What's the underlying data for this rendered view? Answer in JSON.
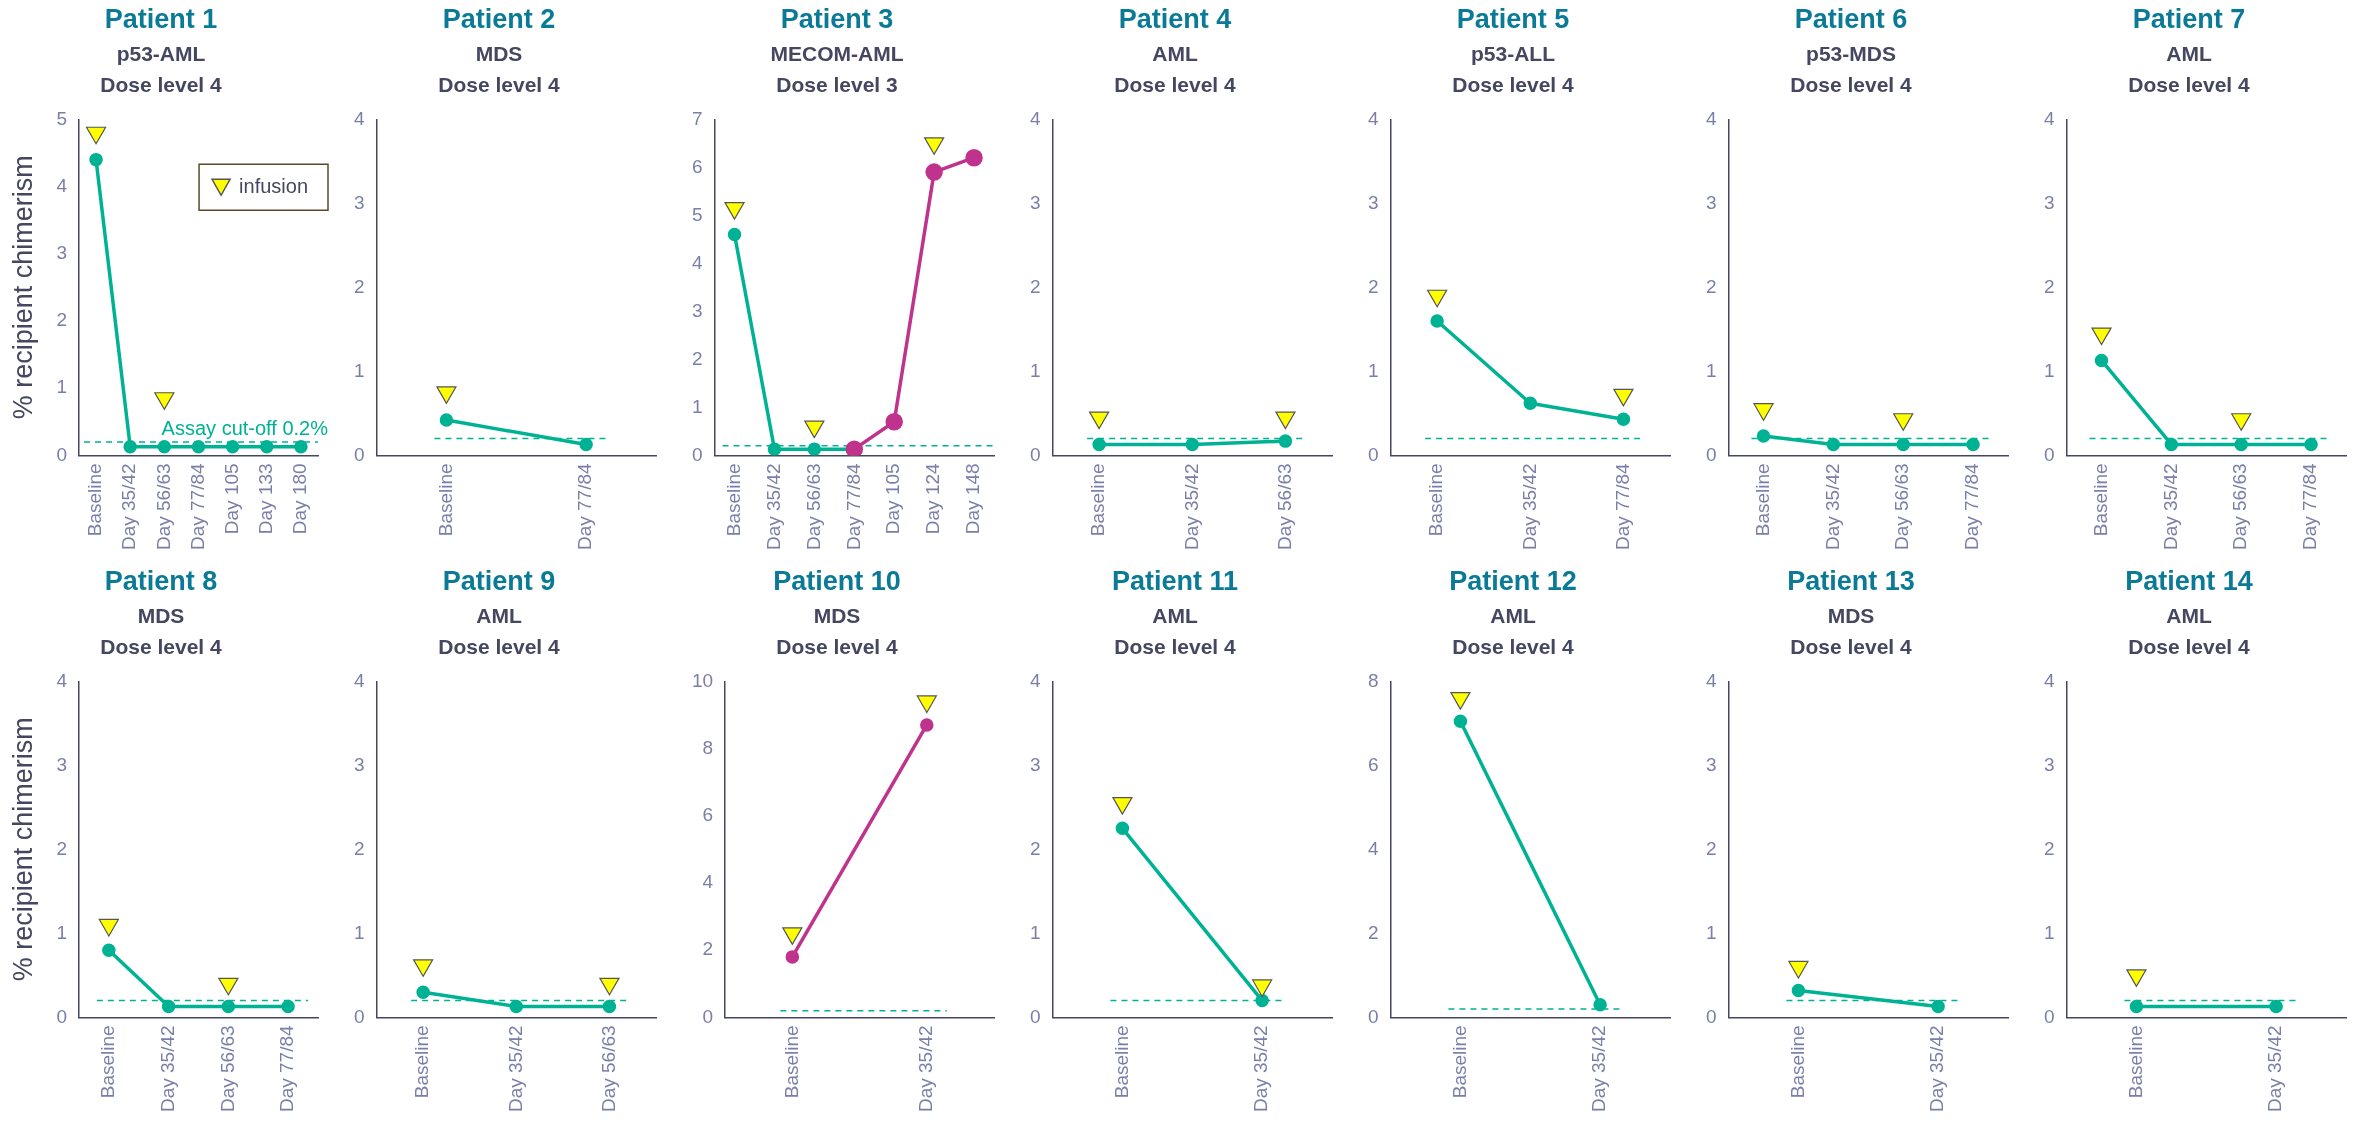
{
  "chart_data": [
    {
      "type": "line",
      "title": "Patient 1",
      "subtitle": "p53-AML\nDose level 4",
      "ylabel": "% recipient chimerism",
      "categories": [
        "Baseline",
        "Day 35/42",
        "Day 56/63",
        "Day 77/84",
        "Day 105",
        "Day 133",
        "Day 180"
      ],
      "ylim": [
        0,
        5
      ],
      "yticks": [
        0,
        1,
        2,
        3,
        4,
        5
      ],
      "marker": "circle",
      "line_style": "solid",
      "legend": "top right",
      "series": [
        {
          "color": "#00b294",
          "values": [
            4.4,
            0.13,
            0.13,
            0.13,
            0.13,
            0.13,
            0.13
          ]
        },
        {
          "type": "scatter",
          "name": "infusion",
          "marker": "triangle",
          "color": "#ffff00",
          "x": [
            "Baseline",
            "Day 56/63"
          ],
          "values": [
            4.8,
            0.85
          ]
        }
      ],
      "ref_lines": [
        {
          "axis": "y",
          "value": 0.2,
          "label": "Assay cut-off 0.2%",
          "color": "#00b294",
          "line_style": "dashed"
        }
      ]
    },
    {
      "type": "line",
      "title": "Patient 2",
      "subtitle": "MDS\nDose level 4",
      "categories": [
        "Baseline",
        "Day 77/84"
      ],
      "ylim": [
        0,
        4
      ],
      "yticks": [
        0,
        1,
        2,
        3,
        4
      ],
      "marker": "circle",
      "line_style": "solid",
      "series": [
        {
          "color": "#00b294",
          "values": [
            0.42,
            0.13
          ]
        },
        {
          "type": "scatter",
          "marker": "triangle",
          "color": "#ffff00",
          "x": [
            "Baseline"
          ],
          "values": [
            0.75
          ]
        }
      ],
      "ref_lines": [
        {
          "axis": "y",
          "value": 0.2,
          "color": "#00b294",
          "line_style": "dashed"
        }
      ]
    },
    {
      "type": "line",
      "title": "Patient 3",
      "subtitle": "MECOM-AML\nDose level 3",
      "categories": [
        "Baseline",
        "Day 35/42",
        "Day 56/63",
        "Day 77/84",
        "Day 105",
        "Day 124",
        "Day 148"
      ],
      "ylim": [
        0,
        7
      ],
      "yticks": [
        0,
        1,
        2,
        3,
        4,
        5,
        6,
        7
      ],
      "marker": "circle",
      "line_style": "solid",
      "series": [
        {
          "color": "#00b294",
          "values": [
            4.6,
            0.13,
            0.13,
            0.13,
            null,
            null,
            null
          ]
        },
        {
          "color": "#c0338c",
          "values": [
            null,
            null,
            null,
            0.13,
            0.7,
            5.9,
            6.2
          ]
        },
        {
          "type": "scatter",
          "marker": "triangle",
          "color": "#ffff00",
          "x": [
            "Baseline",
            "Day 56/63",
            "Day 124"
          ],
          "values": [
            5.15,
            0.6,
            6.5
          ]
        }
      ],
      "ref_lines": [
        {
          "axis": "y",
          "value": 0.2,
          "color": "#00b294",
          "line_style": "dashed"
        }
      ]
    },
    {
      "type": "line",
      "title": "Patient 4",
      "subtitle": "AML\nDose level 4",
      "categories": [
        "Baseline",
        "Day 35/42",
        "Day 56/63"
      ],
      "ylim": [
        0,
        4
      ],
      "yticks": [
        0,
        1,
        2,
        3,
        4
      ],
      "marker": "circle",
      "line_style": "solid",
      "series": [
        {
          "color": "#00b294",
          "values": [
            0.13,
            0.13,
            0.17
          ]
        },
        {
          "type": "scatter",
          "marker": "triangle",
          "color": "#ffff00",
          "x": [
            "Baseline",
            "Day 56/63"
          ],
          "values": [
            0.45,
            0.45
          ]
        }
      ],
      "ref_lines": [
        {
          "axis": "y",
          "value": 0.2,
          "color": "#00b294",
          "line_style": "dashed"
        }
      ]
    },
    {
      "type": "line",
      "title": "Patient 5",
      "subtitle": "p53-ALL\nDose level 4",
      "categories": [
        "Baseline",
        "Day 35/42",
        "Day 77/84"
      ],
      "ylim": [
        0,
        4
      ],
      "yticks": [
        0,
        1,
        2,
        3,
        4
      ],
      "marker": "circle",
      "line_style": "solid",
      "series": [
        {
          "color": "#00b294",
          "values": [
            1.6,
            0.62,
            0.43
          ]
        },
        {
          "type": "scatter",
          "marker": "triangle",
          "color": "#ffff00",
          "x": [
            "Baseline",
            "Day 77/84"
          ],
          "values": [
            1.9,
            0.72
          ]
        }
      ],
      "ref_lines": [
        {
          "axis": "y",
          "value": 0.2,
          "color": "#00b294",
          "line_style": "dashed"
        }
      ]
    },
    {
      "type": "line",
      "title": "Patient 6",
      "subtitle": "p53-MDS\nDose level 4",
      "categories": [
        "Baseline",
        "Day 35/42",
        "Day 56/63",
        "Day 77/84"
      ],
      "ylim": [
        0,
        4
      ],
      "yticks": [
        0,
        1,
        2,
        3,
        4
      ],
      "marker": "circle",
      "line_style": "solid",
      "series": [
        {
          "color": "#00b294",
          "values": [
            0.23,
            0.13,
            0.13,
            0.13
          ]
        },
        {
          "type": "scatter",
          "marker": "triangle",
          "color": "#ffff00",
          "x": [
            "Baseline",
            "Day 56/63"
          ],
          "values": [
            0.55,
            0.43
          ]
        }
      ],
      "ref_lines": [
        {
          "axis": "y",
          "value": 0.2,
          "color": "#00b294",
          "line_style": "dashed"
        }
      ]
    },
    {
      "type": "line",
      "title": "Patient 7",
      "subtitle": "AML\nDose level 4",
      "categories": [
        "Baseline",
        "Day 35/42",
        "Day 56/63",
        "Day 77/84"
      ],
      "ylim": [
        0,
        4
      ],
      "yticks": [
        0,
        1,
        2,
        3,
        4
      ],
      "marker": "circle",
      "line_style": "solid",
      "series": [
        {
          "color": "#00b294",
          "values": [
            1.13,
            0.13,
            0.13,
            0.13
          ]
        },
        {
          "type": "scatter",
          "marker": "triangle",
          "color": "#ffff00",
          "x": [
            "Baseline",
            "Day 56/63"
          ],
          "values": [
            1.45,
            0.43
          ]
        }
      ],
      "ref_lines": [
        {
          "axis": "y",
          "value": 0.2,
          "color": "#00b294",
          "line_style": "dashed"
        }
      ]
    },
    {
      "type": "line",
      "title": "Patient 8",
      "subtitle": "MDS\nDose level 4",
      "ylabel": "% recipient chimerism",
      "categories": [
        "Baseline",
        "Day 35/42",
        "Day 56/63",
        "Day 77/84"
      ],
      "ylim": [
        0,
        4
      ],
      "yticks": [
        0,
        1,
        2,
        3,
        4
      ],
      "marker": "circle",
      "line_style": "solid",
      "series": [
        {
          "color": "#00b294",
          "values": [
            0.8,
            0.13,
            0.13,
            0.13
          ]
        },
        {
          "type": "scatter",
          "marker": "triangle",
          "color": "#ffff00",
          "x": [
            "Baseline",
            "Day 56/63"
          ],
          "values": [
            1.1,
            0.4
          ]
        }
      ],
      "ref_lines": [
        {
          "axis": "y",
          "value": 0.2,
          "color": "#00b294",
          "line_style": "dashed"
        }
      ]
    },
    {
      "type": "line",
      "title": "Patient 9",
      "subtitle": "AML\nDose level 4",
      "categories": [
        "Baseline",
        "Day 35/42",
        "Day 56/63"
      ],
      "ylim": [
        0,
        4
      ],
      "yticks": [
        0,
        1,
        2,
        3,
        4
      ],
      "marker": "circle",
      "line_style": "solid",
      "series": [
        {
          "color": "#00b294",
          "values": [
            0.3,
            0.13,
            0.13
          ]
        },
        {
          "type": "scatter",
          "marker": "triangle",
          "color": "#ffff00",
          "x": [
            "Baseline",
            "Day 56/63"
          ],
          "values": [
            0.62,
            0.4
          ]
        }
      ],
      "ref_lines": [
        {
          "axis": "y",
          "value": 0.2,
          "color": "#00b294",
          "line_style": "dashed"
        }
      ]
    },
    {
      "type": "line",
      "title": "Patient 10",
      "subtitle": "MDS\nDose level 4",
      "categories": [
        "Baseline",
        "Day 35/42"
      ],
      "ylim": [
        0,
        10
      ],
      "yticks": [
        0,
        2,
        4,
        6,
        8,
        10
      ],
      "marker": "circle",
      "line_style": "solid",
      "series": [
        {
          "color": "#c0338c",
          "values": [
            1.8,
            8.7
          ]
        },
        {
          "type": "scatter",
          "marker": "triangle",
          "color": "#ffff00",
          "x": [
            "Baseline",
            "Day 35/42"
          ],
          "values": [
            2.5,
            9.4
          ]
        }
      ],
      "ref_lines": [
        {
          "axis": "y",
          "value": 0.2,
          "color": "#00b294",
          "line_style": "dashed"
        }
      ]
    },
    {
      "type": "line",
      "title": "Patient 11",
      "subtitle": "AML\nDose level 4",
      "categories": [
        "Baseline",
        "Day 35/42"
      ],
      "ylim": [
        0,
        4
      ],
      "yticks": [
        0,
        1,
        2,
        3,
        4
      ],
      "marker": "circle",
      "line_style": "solid",
      "series": [
        {
          "color": "#00b294",
          "values": [
            2.25,
            0.2
          ]
        },
        {
          "type": "scatter",
          "marker": "triangle",
          "color": "#ffff00",
          "x": [
            "Baseline",
            "Day 35/42"
          ],
          "values": [
            2.55,
            0.38
          ]
        }
      ],
      "ref_lines": [
        {
          "axis": "y",
          "value": 0.2,
          "color": "#00b294",
          "line_style": "dashed"
        }
      ]
    },
    {
      "type": "line",
      "title": "Patient 12",
      "subtitle": "AML\nDose level 4",
      "categories": [
        "Baseline",
        "Day 35/42"
      ],
      "ylim": [
        0,
        8
      ],
      "yticks": [
        0,
        2,
        4,
        6,
        8
      ],
      "marker": "circle",
      "line_style": "solid",
      "series": [
        {
          "color": "#00b294",
          "values": [
            7.05,
            0.3
          ]
        },
        {
          "type": "scatter",
          "marker": "triangle",
          "color": "#ffff00",
          "x": [
            "Baseline"
          ],
          "values": [
            7.6
          ]
        }
      ],
      "ref_lines": [
        {
          "axis": "y",
          "value": 0.2,
          "color": "#00b294",
          "line_style": "dashed"
        }
      ]
    },
    {
      "type": "line",
      "title": "Patient 13",
      "subtitle": "MDS\nDose level 4",
      "categories": [
        "Baseline",
        "Day 35/42"
      ],
      "ylim": [
        0,
        4
      ],
      "yticks": [
        0,
        1,
        2,
        3,
        4
      ],
      "marker": "circle",
      "line_style": "solid",
      "series": [
        {
          "color": "#00b294",
          "values": [
            0.32,
            0.13
          ]
        },
        {
          "type": "scatter",
          "marker": "triangle",
          "color": "#ffff00",
          "x": [
            "Baseline"
          ],
          "values": [
            0.6
          ]
        }
      ],
      "ref_lines": [
        {
          "axis": "y",
          "value": 0.2,
          "color": "#00b294",
          "line_style": "dashed"
        }
      ]
    },
    {
      "type": "line",
      "title": "Patient 14",
      "subtitle": "AML\nDose level 4",
      "categories": [
        "Baseline",
        "Day 35/42"
      ],
      "ylim": [
        0,
        4
      ],
      "yticks": [
        0,
        1,
        2,
        3,
        4
      ],
      "marker": "circle",
      "line_style": "solid",
      "series": [
        {
          "color": "#00b294",
          "values": [
            0.13,
            0.13
          ]
        },
        {
          "type": "scatter",
          "marker": "triangle",
          "color": "#ffff00",
          "x": [
            "Baseline"
          ],
          "values": [
            0.5
          ]
        }
      ],
      "ref_lines": [
        {
          "axis": "y",
          "value": 0.2,
          "color": "#00b294",
          "line_style": "dashed"
        }
      ]
    }
  ]
}
